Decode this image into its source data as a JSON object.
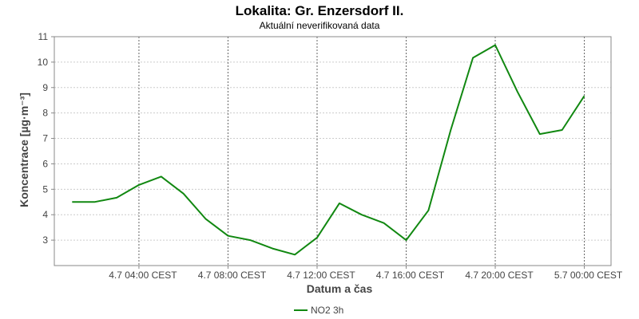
{
  "chart_data": {
    "type": "line",
    "title": "Lokalita: Gr. Enzersdorf II.",
    "subtitle": "Aktuální neverifikovaná data",
    "xlabel": "Datum a čas",
    "ylabel": "Koncentrace [µg·m⁻³]",
    "x_tick_labels": [
      "4.7 04:00 CEST",
      "4.7 08:00 CEST",
      "4.7 12:00 CEST",
      "4.7 16:00 CEST",
      "4.7 20:00 CEST",
      "5.7 00:00 CEST"
    ],
    "x_ticks_hours": [
      4,
      8,
      12,
      16,
      20,
      24
    ],
    "xlim_hours": [
      0.2,
      25.2
    ],
    "ylim": [
      2,
      11
    ],
    "y_ticks": [
      3,
      4,
      5,
      6,
      7,
      8,
      9,
      10,
      11
    ],
    "grid": true,
    "legend_position": "bottom-center",
    "colors": {
      "series": "#118811",
      "grid": "#cccccc",
      "axis": "#888888"
    },
    "series": [
      {
        "name": "NO2 3h",
        "x_hours": [
          1,
          2,
          3,
          4,
          5,
          6,
          7,
          8,
          9,
          10,
          11,
          12,
          13,
          14,
          15,
          16,
          17,
          18,
          19,
          20,
          21,
          22,
          23,
          24
        ],
        "values": [
          4.5,
          4.5,
          4.67,
          5.17,
          5.5,
          4.83,
          3.83,
          3.17,
          3.0,
          2.67,
          2.43,
          3.1,
          4.45,
          4.0,
          3.67,
          3.0,
          4.17,
          7.33,
          10.17,
          10.67,
          8.83,
          7.17,
          7.33,
          8.67
        ]
      }
    ]
  }
}
